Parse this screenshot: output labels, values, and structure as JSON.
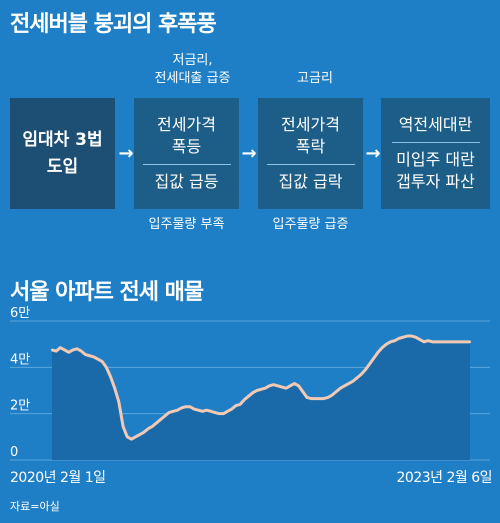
{
  "top_title": "전세버블 붕괴의 후폭풍",
  "flow": {
    "notes_above": [
      "저금리,\n전세대출 급증",
      "고금리"
    ],
    "notes_below": [
      "입주물량 부족",
      "입주물량 급증"
    ],
    "boxes": [
      {
        "top": "임대차 3법\n도입",
        "bottom": ""
      },
      {
        "top": "전세가격\n폭등",
        "bottom": "집값 급등"
      },
      {
        "top": "전세가격\n폭락",
        "bottom": "집값 급락"
      },
      {
        "top": "역전세대란",
        "bottom": "미입주 대란\n갭투자 파산"
      }
    ],
    "arrow_glyph": "→"
  },
  "colors": {
    "background": "#1f7fc6",
    "box": "#1c5e87",
    "box_first": "#1c4f73",
    "line": "#f2c9b3",
    "area": "#1a6aaa"
  },
  "chart_data": {
    "type": "area",
    "title": "서울 아파트 전세 매물",
    "ylim": [
      0,
      60000
    ],
    "y_ticks": [
      0,
      20000,
      40000,
      60000
    ],
    "y_tick_labels": [
      "0",
      "2만",
      "4만",
      "6만"
    ],
    "x_labels": [
      "2020년 2월 1일",
      "2023년 2월 6일"
    ],
    "x": [
      0,
      0.01,
      0.02,
      0.03,
      0.04,
      0.05,
      0.06,
      0.07,
      0.08,
      0.09,
      0.1,
      0.11,
      0.12,
      0.13,
      0.14,
      0.15,
      0.16,
      0.17,
      0.18,
      0.19,
      0.2,
      0.21,
      0.22,
      0.23,
      0.24,
      0.25,
      0.26,
      0.27,
      0.28,
      0.29,
      0.3,
      0.31,
      0.32,
      0.33,
      0.34,
      0.35,
      0.36,
      0.37,
      0.38,
      0.39,
      0.4,
      0.41,
      0.42,
      0.43,
      0.44,
      0.45,
      0.46,
      0.47,
      0.48,
      0.49,
      0.5,
      0.51,
      0.52,
      0.53,
      0.54,
      0.55,
      0.56,
      0.57,
      0.58,
      0.59,
      0.6,
      0.61,
      0.62,
      0.63,
      0.64,
      0.65,
      0.66,
      0.67,
      0.68,
      0.69,
      0.7,
      0.71,
      0.72,
      0.73,
      0.74,
      0.75,
      0.76,
      0.77,
      0.78,
      0.79,
      0.8,
      0.81,
      0.82,
      0.83,
      0.84,
      0.85,
      0.86,
      0.87,
      0.88,
      0.89,
      0.9,
      0.91,
      0.92,
      0.93,
      0.94,
      0.95,
      0.96,
      0.97,
      0.98,
      0.99,
      1.0
    ],
    "values": [
      47500,
      47000,
      48500,
      47500,
      46500,
      47500,
      48000,
      47000,
      45500,
      45000,
      44500,
      43500,
      42500,
      40000,
      36000,
      31000,
      25000,
      14500,
      10000,
      9000,
      10000,
      11000,
      12000,
      13500,
      14500,
      16000,
      17500,
      19000,
      20500,
      21000,
      21500,
      22500,
      23000,
      23000,
      22000,
      21500,
      21000,
      21500,
      21000,
      20500,
      20000,
      20000,
      21000,
      22000,
      23500,
      24000,
      26000,
      27500,
      29000,
      30000,
      30500,
      31000,
      32000,
      32500,
      32000,
      31500,
      31000,
      32000,
      33000,
      32000,
      29500,
      27000,
      26500,
      26500,
      26500,
      26500,
      27000,
      28000,
      29500,
      31000,
      32000,
      33000,
      34000,
      35500,
      37000,
      39000,
      41500,
      44000,
      46500,
      48500,
      50000,
      51000,
      51500,
      52500,
      53000,
      53500,
      53500,
      53000,
      52000,
      51000,
      51500,
      51000,
      51000,
      51000,
      51000,
      51000,
      51000,
      51000,
      51000,
      51000,
      51000
    ],
    "grid": true
  },
  "source": "자료=아실"
}
